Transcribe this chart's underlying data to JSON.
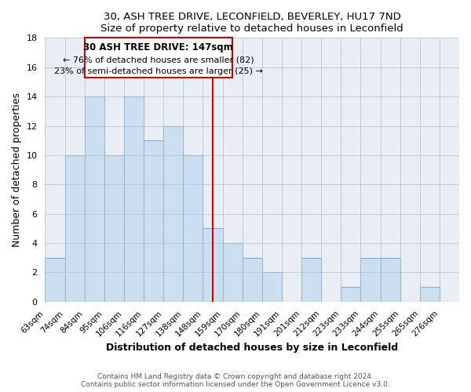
{
  "title": "30, ASH TREE DRIVE, LECONFIELD, BEVERLEY, HU17 7ND",
  "subtitle": "Size of property relative to detached houses in Leconfield",
  "xlabel": "Distribution of detached houses by size in Leconfield",
  "ylabel": "Number of detached properties",
  "bin_labels": [
    "63sqm",
    "74sqm",
    "84sqm",
    "95sqm",
    "106sqm",
    "116sqm",
    "127sqm",
    "138sqm",
    "148sqm",
    "159sqm",
    "170sqm",
    "180sqm",
    "191sqm",
    "201sqm",
    "212sqm",
    "223sqm",
    "233sqm",
    "244sqm",
    "255sqm",
    "265sqm",
    "276sqm"
  ],
  "bin_counts": [
    3,
    10,
    14,
    10,
    14,
    11,
    12,
    10,
    5,
    4,
    3,
    2,
    0,
    3,
    0,
    1,
    3,
    3,
    0,
    1,
    0
  ],
  "bar_color": "#ccdff0",
  "bar_edge_color": "#7ab0d4",
  "property_line_label": "30 ASH TREE DRIVE: 147sqm",
  "annotation_line1": "← 76% of detached houses are smaller (82)",
  "annotation_line2": "23% of semi-detached houses are larger (25) →",
  "annotation_box_color": "#ffffff",
  "annotation_box_edge_color": "#cc0000",
  "vline_color": "#cc0000",
  "vline_x_index": 8.5,
  "ylim": [
    0,
    18
  ],
  "yticks": [
    0,
    2,
    4,
    6,
    8,
    10,
    12,
    14,
    16,
    18
  ],
  "bg_color": "#e8eef4",
  "footer1": "Contains HM Land Registry data © Crown copyright and database right 2024.",
  "footer2": "Contains public sector information licensed under the Open Government Licence v3.0."
}
